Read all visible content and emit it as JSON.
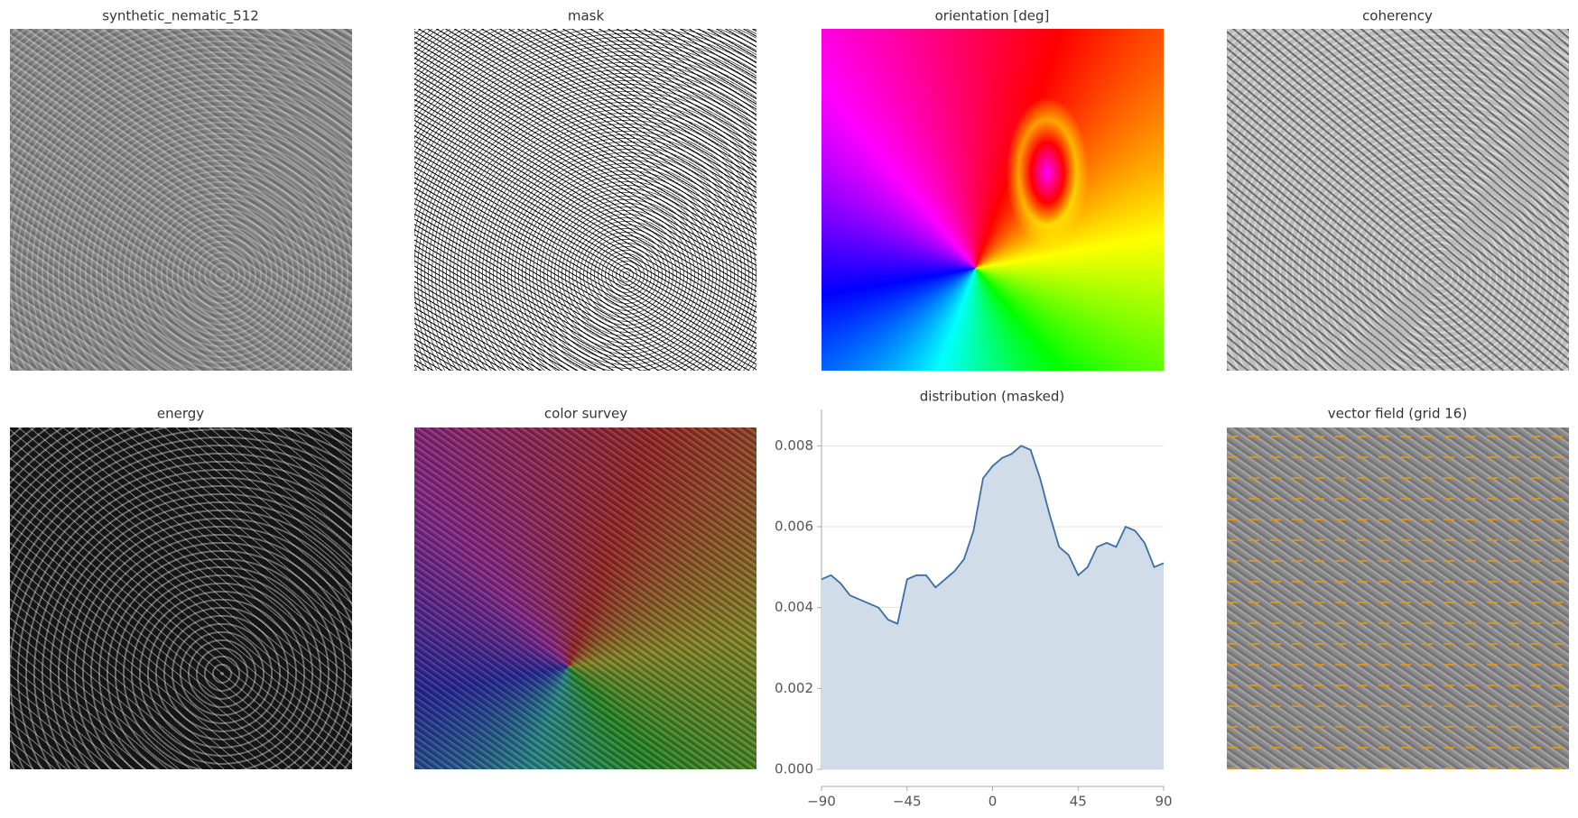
{
  "panels": [
    {
      "title": "synthetic_nematic_512"
    },
    {
      "title": "mask"
    },
    {
      "title": "orientation [deg]"
    },
    {
      "title": "coherency"
    },
    {
      "title": "energy"
    },
    {
      "title": "color survey"
    },
    {
      "title": "vector field (grid 16)"
    }
  ],
  "chart_data": {
    "type": "area",
    "title": "distribution (masked)",
    "x": [
      -90,
      -85,
      -80,
      -75,
      -70,
      -65,
      -60,
      -55,
      -50,
      -45,
      -40,
      -35,
      -30,
      -25,
      -20,
      -15,
      -10,
      -5,
      0,
      5,
      10,
      15,
      20,
      25,
      30,
      35,
      40,
      45,
      50,
      55,
      60,
      65,
      70,
      75,
      80,
      85,
      90
    ],
    "values": [
      0.0047,
      0.0048,
      0.0046,
      0.0043,
      0.0042,
      0.0041,
      0.004,
      0.0037,
      0.0036,
      0.0047,
      0.0048,
      0.0048,
      0.0045,
      0.0047,
      0.0049,
      0.0052,
      0.0059,
      0.0072,
      0.0075,
      0.0077,
      0.0078,
      0.008,
      0.0079,
      0.0072,
      0.0063,
      0.0055,
      0.0053,
      0.0048,
      0.005,
      0.0055,
      0.0056,
      0.0055,
      0.006,
      0.0059,
      0.0056,
      0.005,
      0.0051
    ],
    "color": "#3b6ea5",
    "fill": "#d0dce8",
    "xlim": [
      -90,
      90
    ],
    "xticks": [
      {
        "value": -90,
        "label": "−90"
      },
      {
        "value": -45,
        "label": "−45"
      },
      0,
      45,
      90
    ],
    "ylim": [
      0,
      0.0089
    ],
    "yticks": [
      {
        "value": 0,
        "label": "0.000"
      },
      0.002,
      0.004,
      0.006,
      0.008
    ],
    "grid": true
  }
}
